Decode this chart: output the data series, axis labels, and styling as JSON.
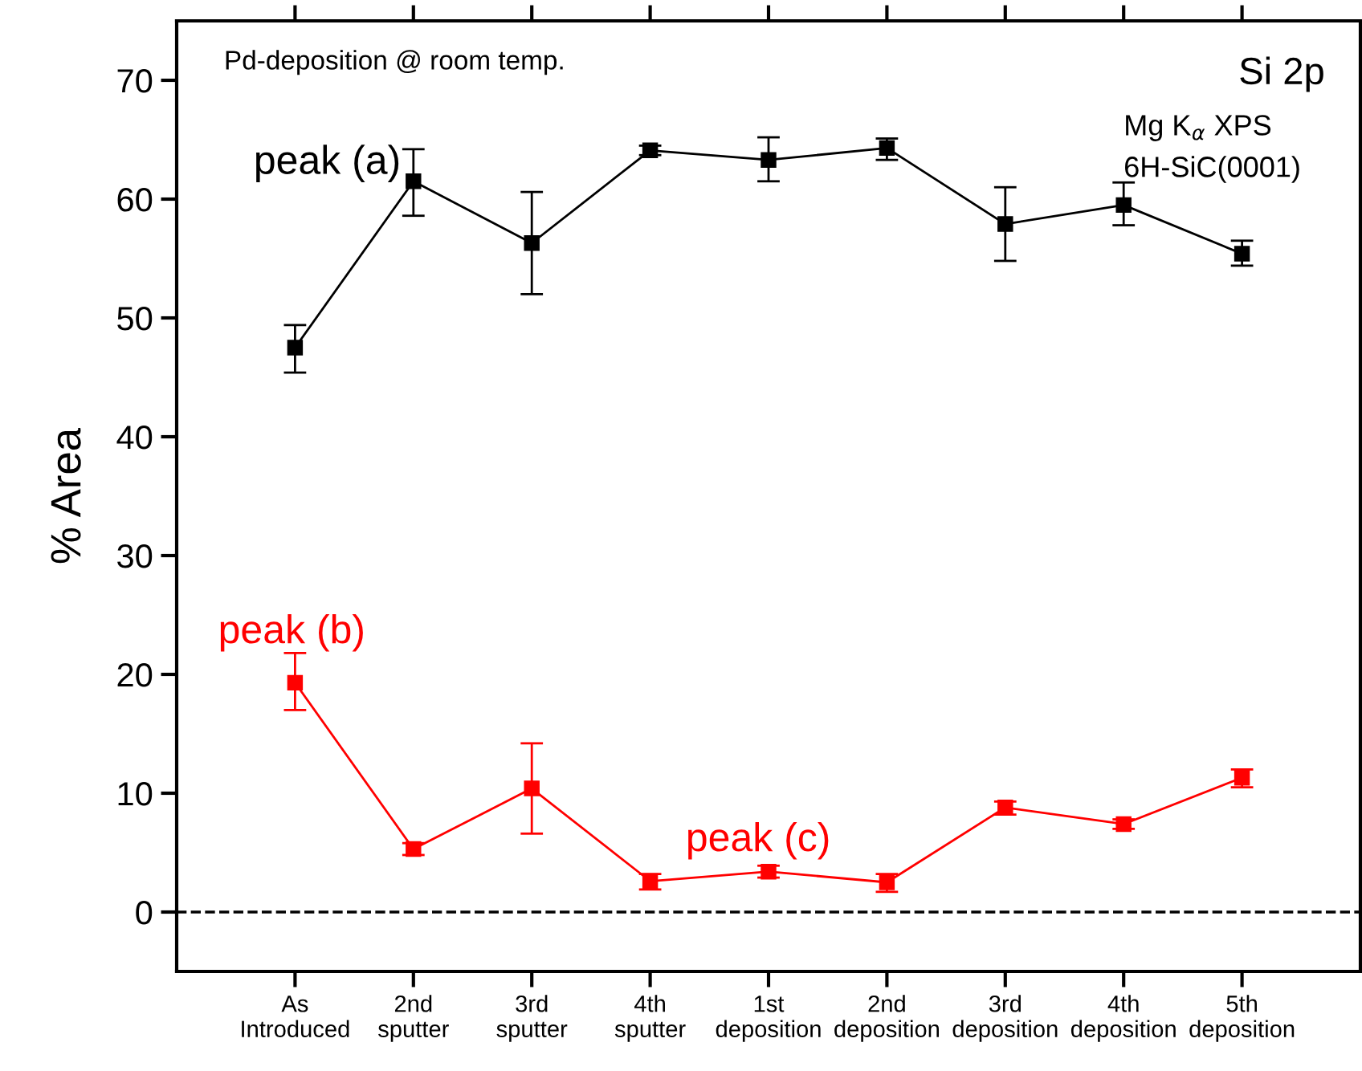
{
  "chart_data": {
    "type": "line",
    "ylabel": "% Area",
    "categories": [
      "As\nIntroduced",
      "2nd\nsputter",
      "3rd\nsputter",
      "4th\nsputter",
      "1st\ndeposition",
      "2nd\ndeposition",
      "3rd\ndeposition",
      "4th\ndeposition",
      "5th\ndeposition"
    ],
    "series": [
      {
        "color": "#000000",
        "values": [
          47.5,
          61.5,
          56.3,
          64.1,
          63.3,
          64.3,
          57.9,
          59.5,
          55.4
        ],
        "errors": [
          [
            45.4,
            49.4
          ],
          [
            58.6,
            64.2
          ],
          [
            52.0,
            60.6
          ],
          [
            63.7,
            64.5
          ],
          [
            61.5,
            65.2
          ],
          [
            63.3,
            65.1
          ],
          [
            54.8,
            61.0
          ],
          [
            57.8,
            61.4
          ],
          [
            54.4,
            56.5
          ]
        ]
      },
      {
        "color": "#ff0000",
        "values": [
          19.3,
          5.3,
          10.4,
          2.6,
          3.4,
          2.5,
          8.8,
          7.4,
          11.3
        ],
        "errors": [
          [
            17.0,
            21.8
          ],
          [
            4.8,
            5.8
          ],
          [
            6.6,
            14.2
          ],
          [
            1.9,
            3.2
          ],
          [
            2.9,
            3.9
          ],
          [
            1.7,
            3.2
          ],
          [
            8.2,
            9.3
          ],
          [
            7.0,
            7.8
          ],
          [
            10.5,
            12.0
          ]
        ]
      }
    ],
    "ylim": [
      -5,
      75
    ],
    "yticks": [
      0,
      10,
      20,
      30,
      40,
      50,
      60,
      70
    ],
    "marker": "square",
    "line_style": "solid",
    "grid": false,
    "legend": false,
    "ref_lines": [
      {
        "axis": "y",
        "value": 0,
        "color": "#000000",
        "line_style": "dashed"
      }
    ],
    "annotations": [
      "Pd-deposition @ room temp.",
      "Si 2p",
      "Mg K$_{α}$ XPS",
      "6H-SiC(0001)",
      "peak (a)",
      "peak (b)",
      "peak (c)"
    ]
  }
}
